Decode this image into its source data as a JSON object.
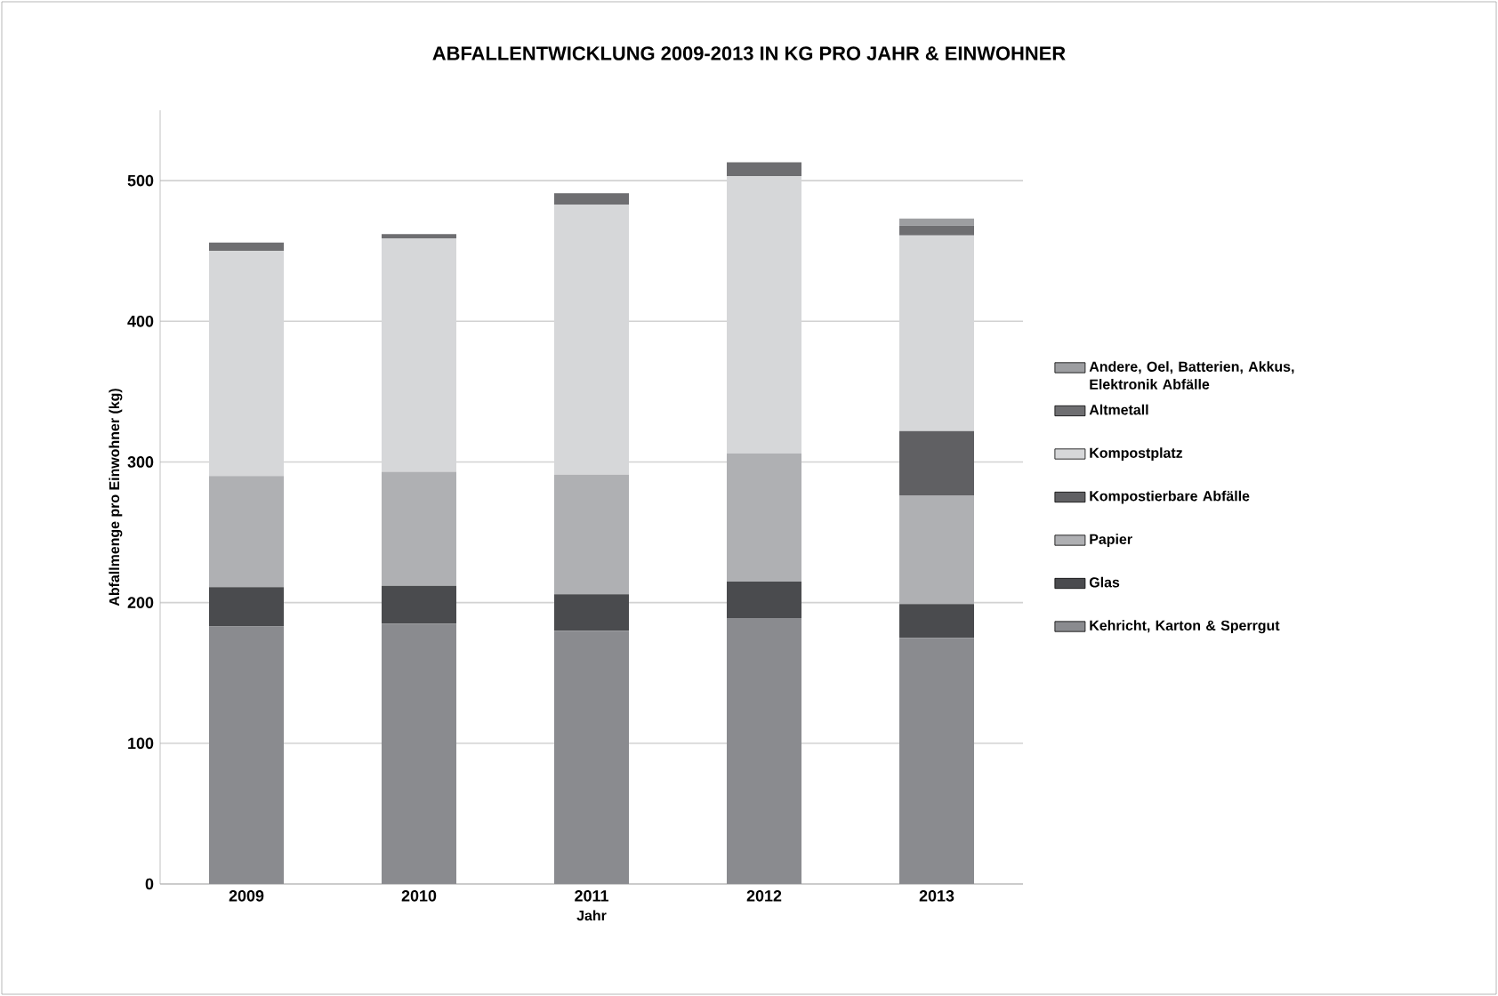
{
  "chart_data": {
    "type": "bar",
    "stacked": true,
    "title": "ABFALLENTWICKLUNG 2009-2013  IN KG PRO JAHR & EINWOHNER",
    "xlabel": "Jahr",
    "ylabel": "Abfallmenge pro Einwohner (kg)",
    "categories": [
      "2009",
      "2010",
      "2011",
      "2012",
      "2013"
    ],
    "series": [
      {
        "name": "Kehricht, Karton & Sperrgut",
        "color": "#8a8b8f",
        "values": [
          183,
          185,
          180,
          189,
          175
        ]
      },
      {
        "name": "Glas",
        "color": "#4a4b4e",
        "values": [
          28,
          27,
          26,
          26,
          24
        ]
      },
      {
        "name": "Papier",
        "color": "#afb0b3",
        "values": [
          79,
          81,
          85,
          91,
          77
        ]
      },
      {
        "name": "Kompostierbare Abfälle",
        "color": "#606063",
        "values": [
          null,
          null,
          null,
          null,
          46
        ]
      },
      {
        "name": "Kompostplatz",
        "color": "#d6d7d9",
        "values": [
          160,
          166,
          192,
          197,
          139
        ]
      },
      {
        "name": "Altmetall",
        "color": "#6e6e71",
        "values": [
          6,
          3,
          8,
          10,
          7
        ]
      },
      {
        "name": "Andere, Oel, Batterien, Akkus, Elektronik Abfälle",
        "color": "#9d9ea1",
        "values": [
          null,
          null,
          null,
          null,
          5
        ]
      }
    ],
    "ylim": [
      0,
      550
    ],
    "yticks": [
      0,
      100,
      200,
      300,
      400,
      500
    ],
    "grid": "y",
    "legend": "right"
  }
}
